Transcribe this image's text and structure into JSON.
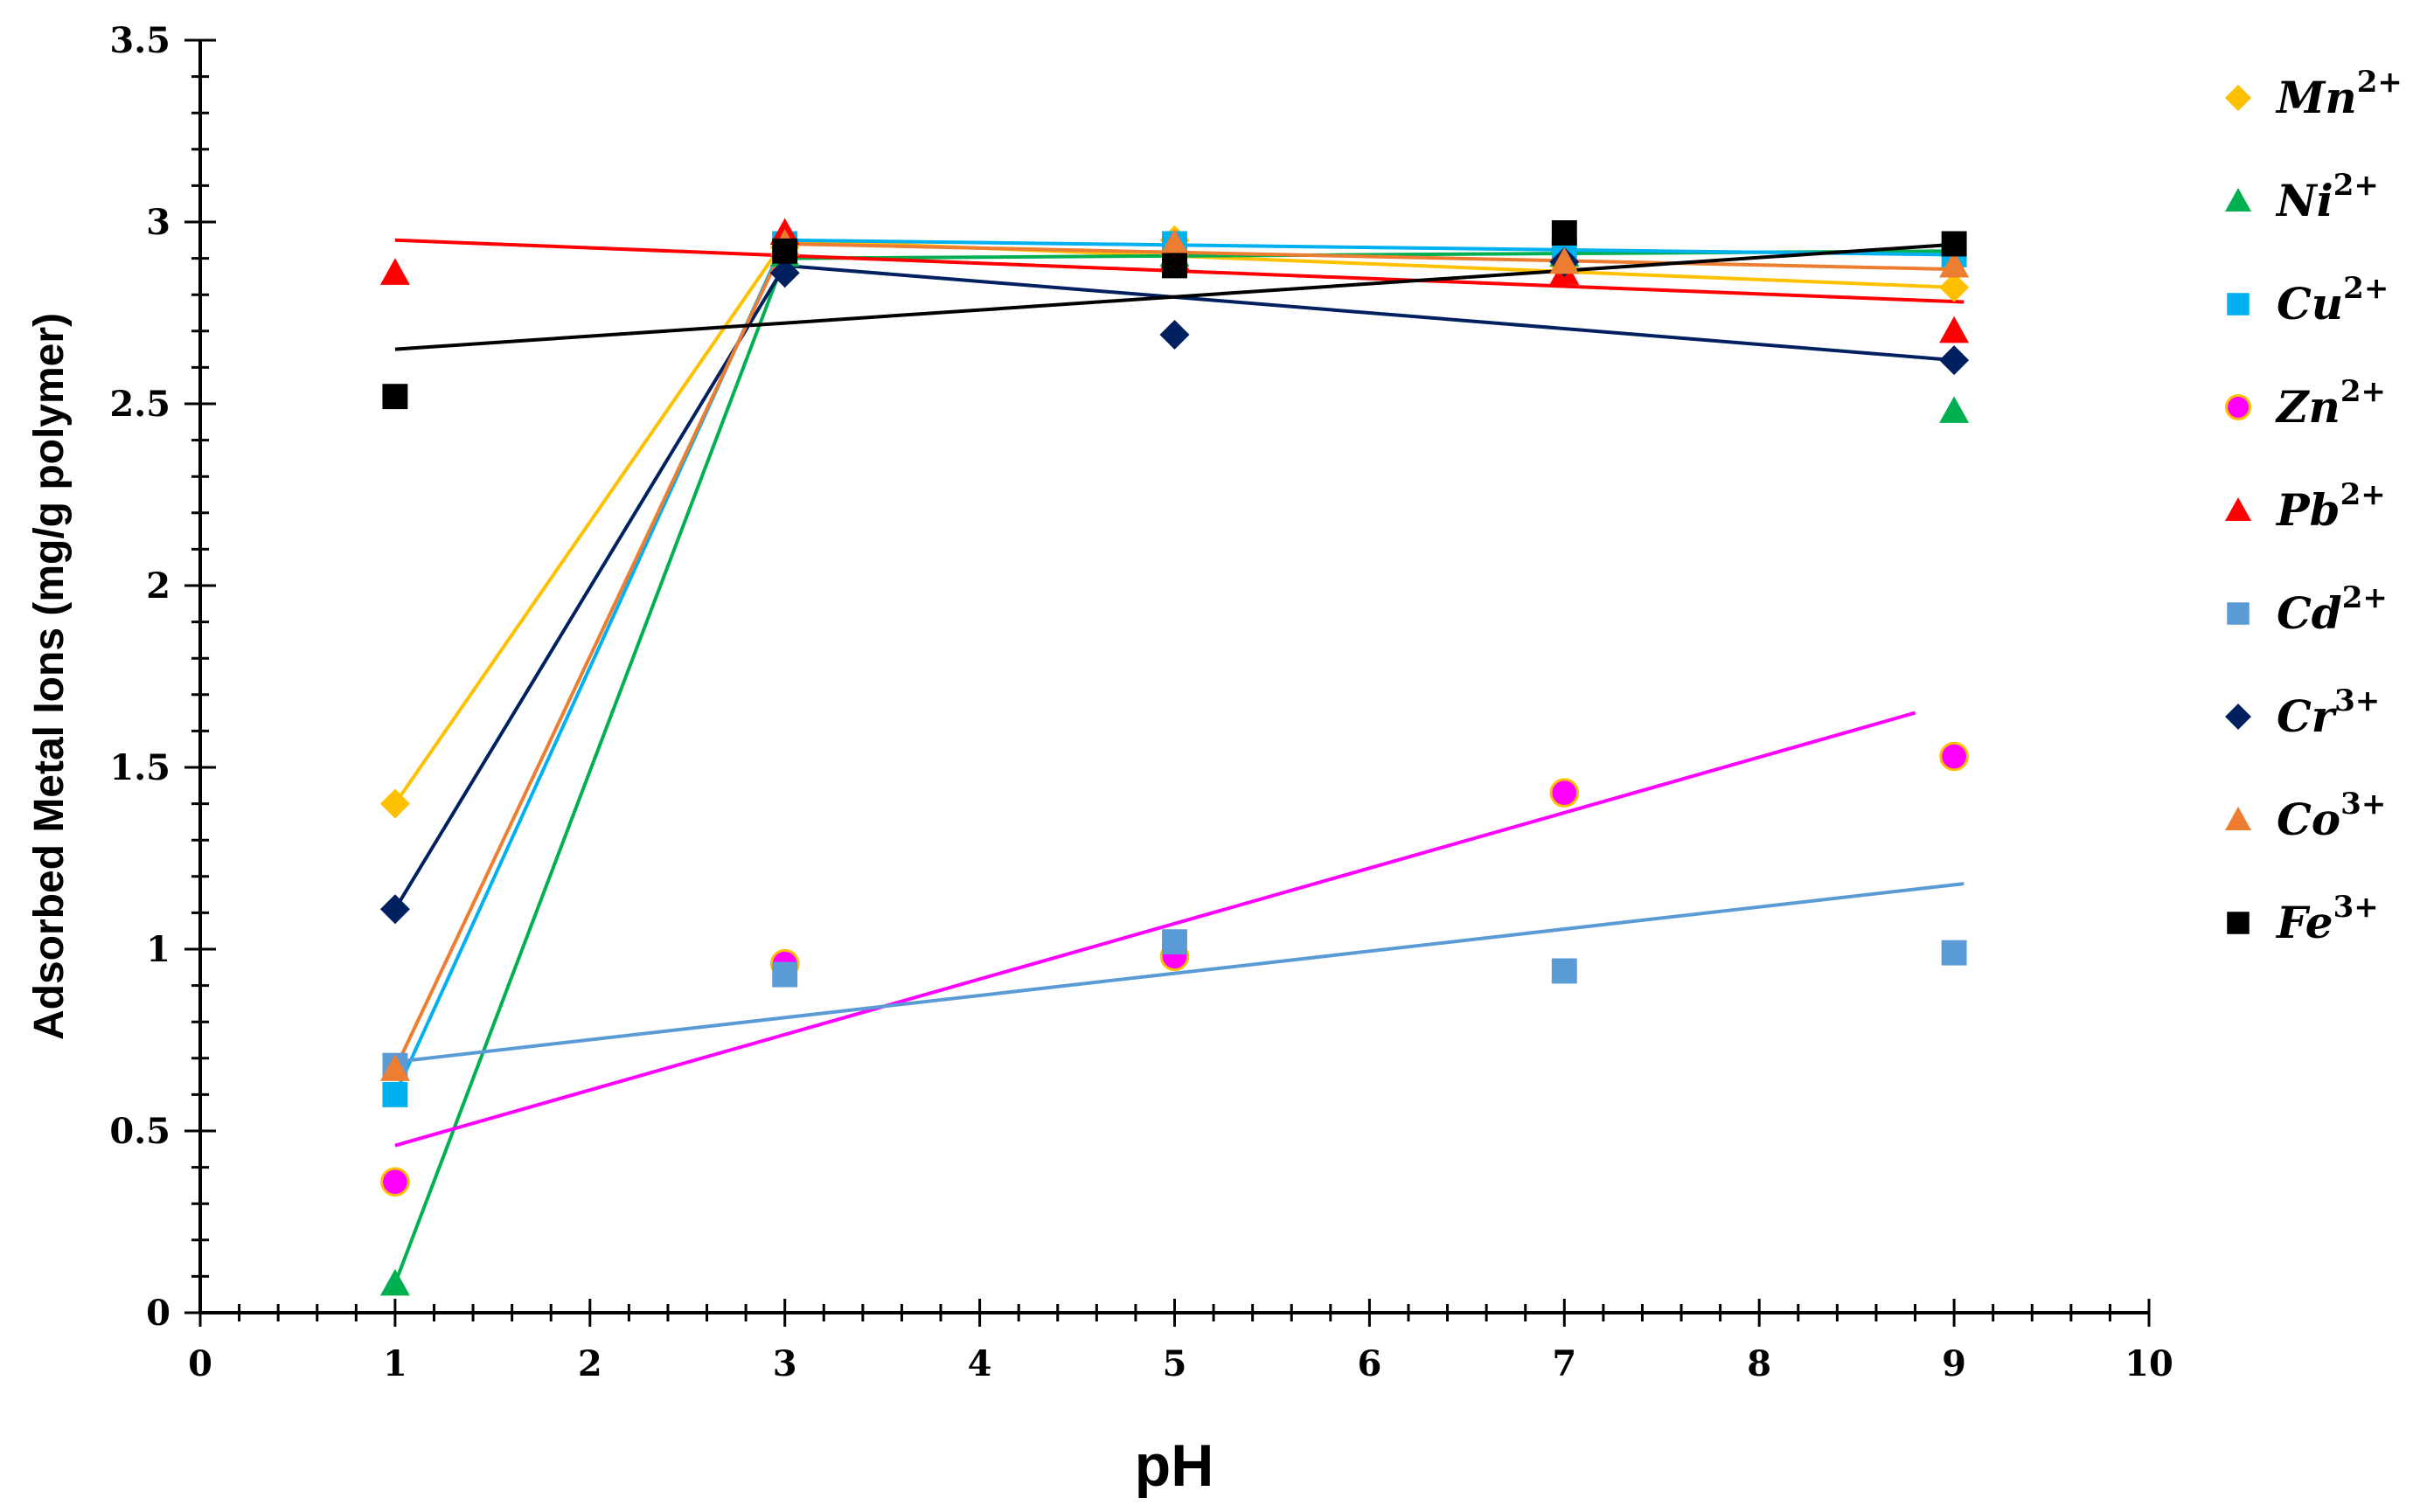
{
  "chart_data": {
    "type": "scatter",
    "title": "",
    "xlabel": "pH",
    "ylabel": "Adsorbed Metal Ions (mg/g polymer)",
    "xlim": [
      0,
      10
    ],
    "ylim": [
      0,
      3.5
    ],
    "xticks": [
      0,
      1,
      2,
      3,
      4,
      5,
      6,
      7,
      8,
      9,
      10
    ],
    "yticks": [
      0,
      0.5,
      1,
      1.5,
      2,
      2.5,
      3,
      3.5
    ],
    "xtick_labels": [
      "0",
      "1",
      "2",
      "3",
      "4",
      "5",
      "6",
      "7",
      "8",
      "9",
      "10"
    ],
    "ytick_labels": [
      "0",
      "0.5",
      "1",
      "1.5",
      "2",
      "2.5",
      "3",
      "3.5"
    ],
    "grid": false,
    "legend_position": "right",
    "series": [
      {
        "name": "Mn",
        "charge": "2+",
        "marker": "diamond",
        "color": "#FFC000",
        "points": [
          [
            1,
            1.4
          ],
          [
            3,
            2.93
          ],
          [
            5,
            2.95
          ],
          [
            7,
            2.88
          ],
          [
            9,
            2.82
          ]
        ],
        "trend": [
          [
            1,
            1.4
          ],
          [
            3,
            2.95
          ],
          [
            9,
            2.82
          ]
        ]
      },
      {
        "name": "Ni",
        "charge": "2+",
        "marker": "triangle",
        "color": "#00B050",
        "points": [
          [
            1,
            0.08
          ],
          [
            3,
            2.91
          ],
          [
            5,
            2.91
          ],
          [
            7,
            2.91
          ],
          [
            9,
            2.48
          ]
        ],
        "trend": [
          [
            1,
            0.08
          ],
          [
            3,
            2.9
          ],
          [
            9,
            2.92
          ]
        ]
      },
      {
        "name": "Cu",
        "charge": "2+",
        "marker": "square",
        "color": "#00B0F0",
        "points": [
          [
            1,
            0.6
          ],
          [
            3,
            2.94
          ],
          [
            5,
            2.94
          ],
          [
            7,
            2.92
          ],
          [
            9,
            2.91
          ]
        ],
        "trend": [
          [
            1,
            0.6
          ],
          [
            3,
            2.95
          ],
          [
            9,
            2.91
          ]
        ]
      },
      {
        "name": "Zn",
        "charge": "2+",
        "marker": "circle",
        "color": "#FF00FF",
        "stroke": "#FFC000",
        "points": [
          [
            1,
            0.36
          ],
          [
            3,
            0.96
          ],
          [
            5,
            0.98
          ],
          [
            7,
            1.43
          ],
          [
            9,
            1.53
          ]
        ],
        "trend": [
          [
            1,
            0.46
          ],
          [
            8.8,
            1.65
          ]
        ]
      },
      {
        "name": "Pb",
        "charge": "2+",
        "marker": "triangle",
        "color": "#FF0000",
        "points": [
          [
            1,
            2.86
          ],
          [
            3,
            2.97
          ],
          [
            5,
            2.9
          ],
          [
            7,
            2.86
          ],
          [
            9,
            2.7
          ]
        ],
        "trend": [
          [
            1,
            2.95
          ],
          [
            9.05,
            2.78
          ]
        ]
      },
      {
        "name": "Cd",
        "charge": "2+",
        "marker": "square",
        "color": "#5B9BD5",
        "points": [
          [
            1,
            0.68
          ],
          [
            3,
            0.93
          ],
          [
            5,
            1.02
          ],
          [
            7,
            0.94
          ],
          [
            9,
            0.99
          ]
        ],
        "trend": [
          [
            1,
            0.69
          ],
          [
            9.05,
            1.18
          ]
        ]
      },
      {
        "name": "Cr",
        "charge": "3+",
        "marker": "diamond",
        "color": "#002060",
        "points": [
          [
            1,
            1.11
          ],
          [
            3,
            2.86
          ],
          [
            5,
            2.69
          ],
          [
            7,
            2.89
          ],
          [
            9,
            2.62
          ]
        ],
        "trend": [
          [
            1,
            1.11
          ],
          [
            3,
            2.88
          ],
          [
            9,
            2.62
          ]
        ]
      },
      {
        "name": "Co",
        "charge": "3+",
        "marker": "triangle",
        "color": "#ED7D31",
        "points": [
          [
            1,
            0.67
          ],
          [
            3,
            2.94
          ],
          [
            5,
            2.94
          ],
          [
            7,
            2.89
          ],
          [
            9,
            2.88
          ]
        ],
        "trend": [
          [
            1,
            0.67
          ],
          [
            3,
            2.94
          ],
          [
            9,
            2.87
          ]
        ]
      },
      {
        "name": "Fe",
        "charge": "3+",
        "marker": "square",
        "color": "#000000",
        "points": [
          [
            1,
            2.52
          ],
          [
            3,
            2.92
          ],
          [
            5,
            2.88
          ],
          [
            7,
            2.97
          ],
          [
            9,
            2.94
          ]
        ],
        "trend": [
          [
            1,
            2.65
          ],
          [
            9.05,
            2.94
          ]
        ]
      }
    ]
  }
}
